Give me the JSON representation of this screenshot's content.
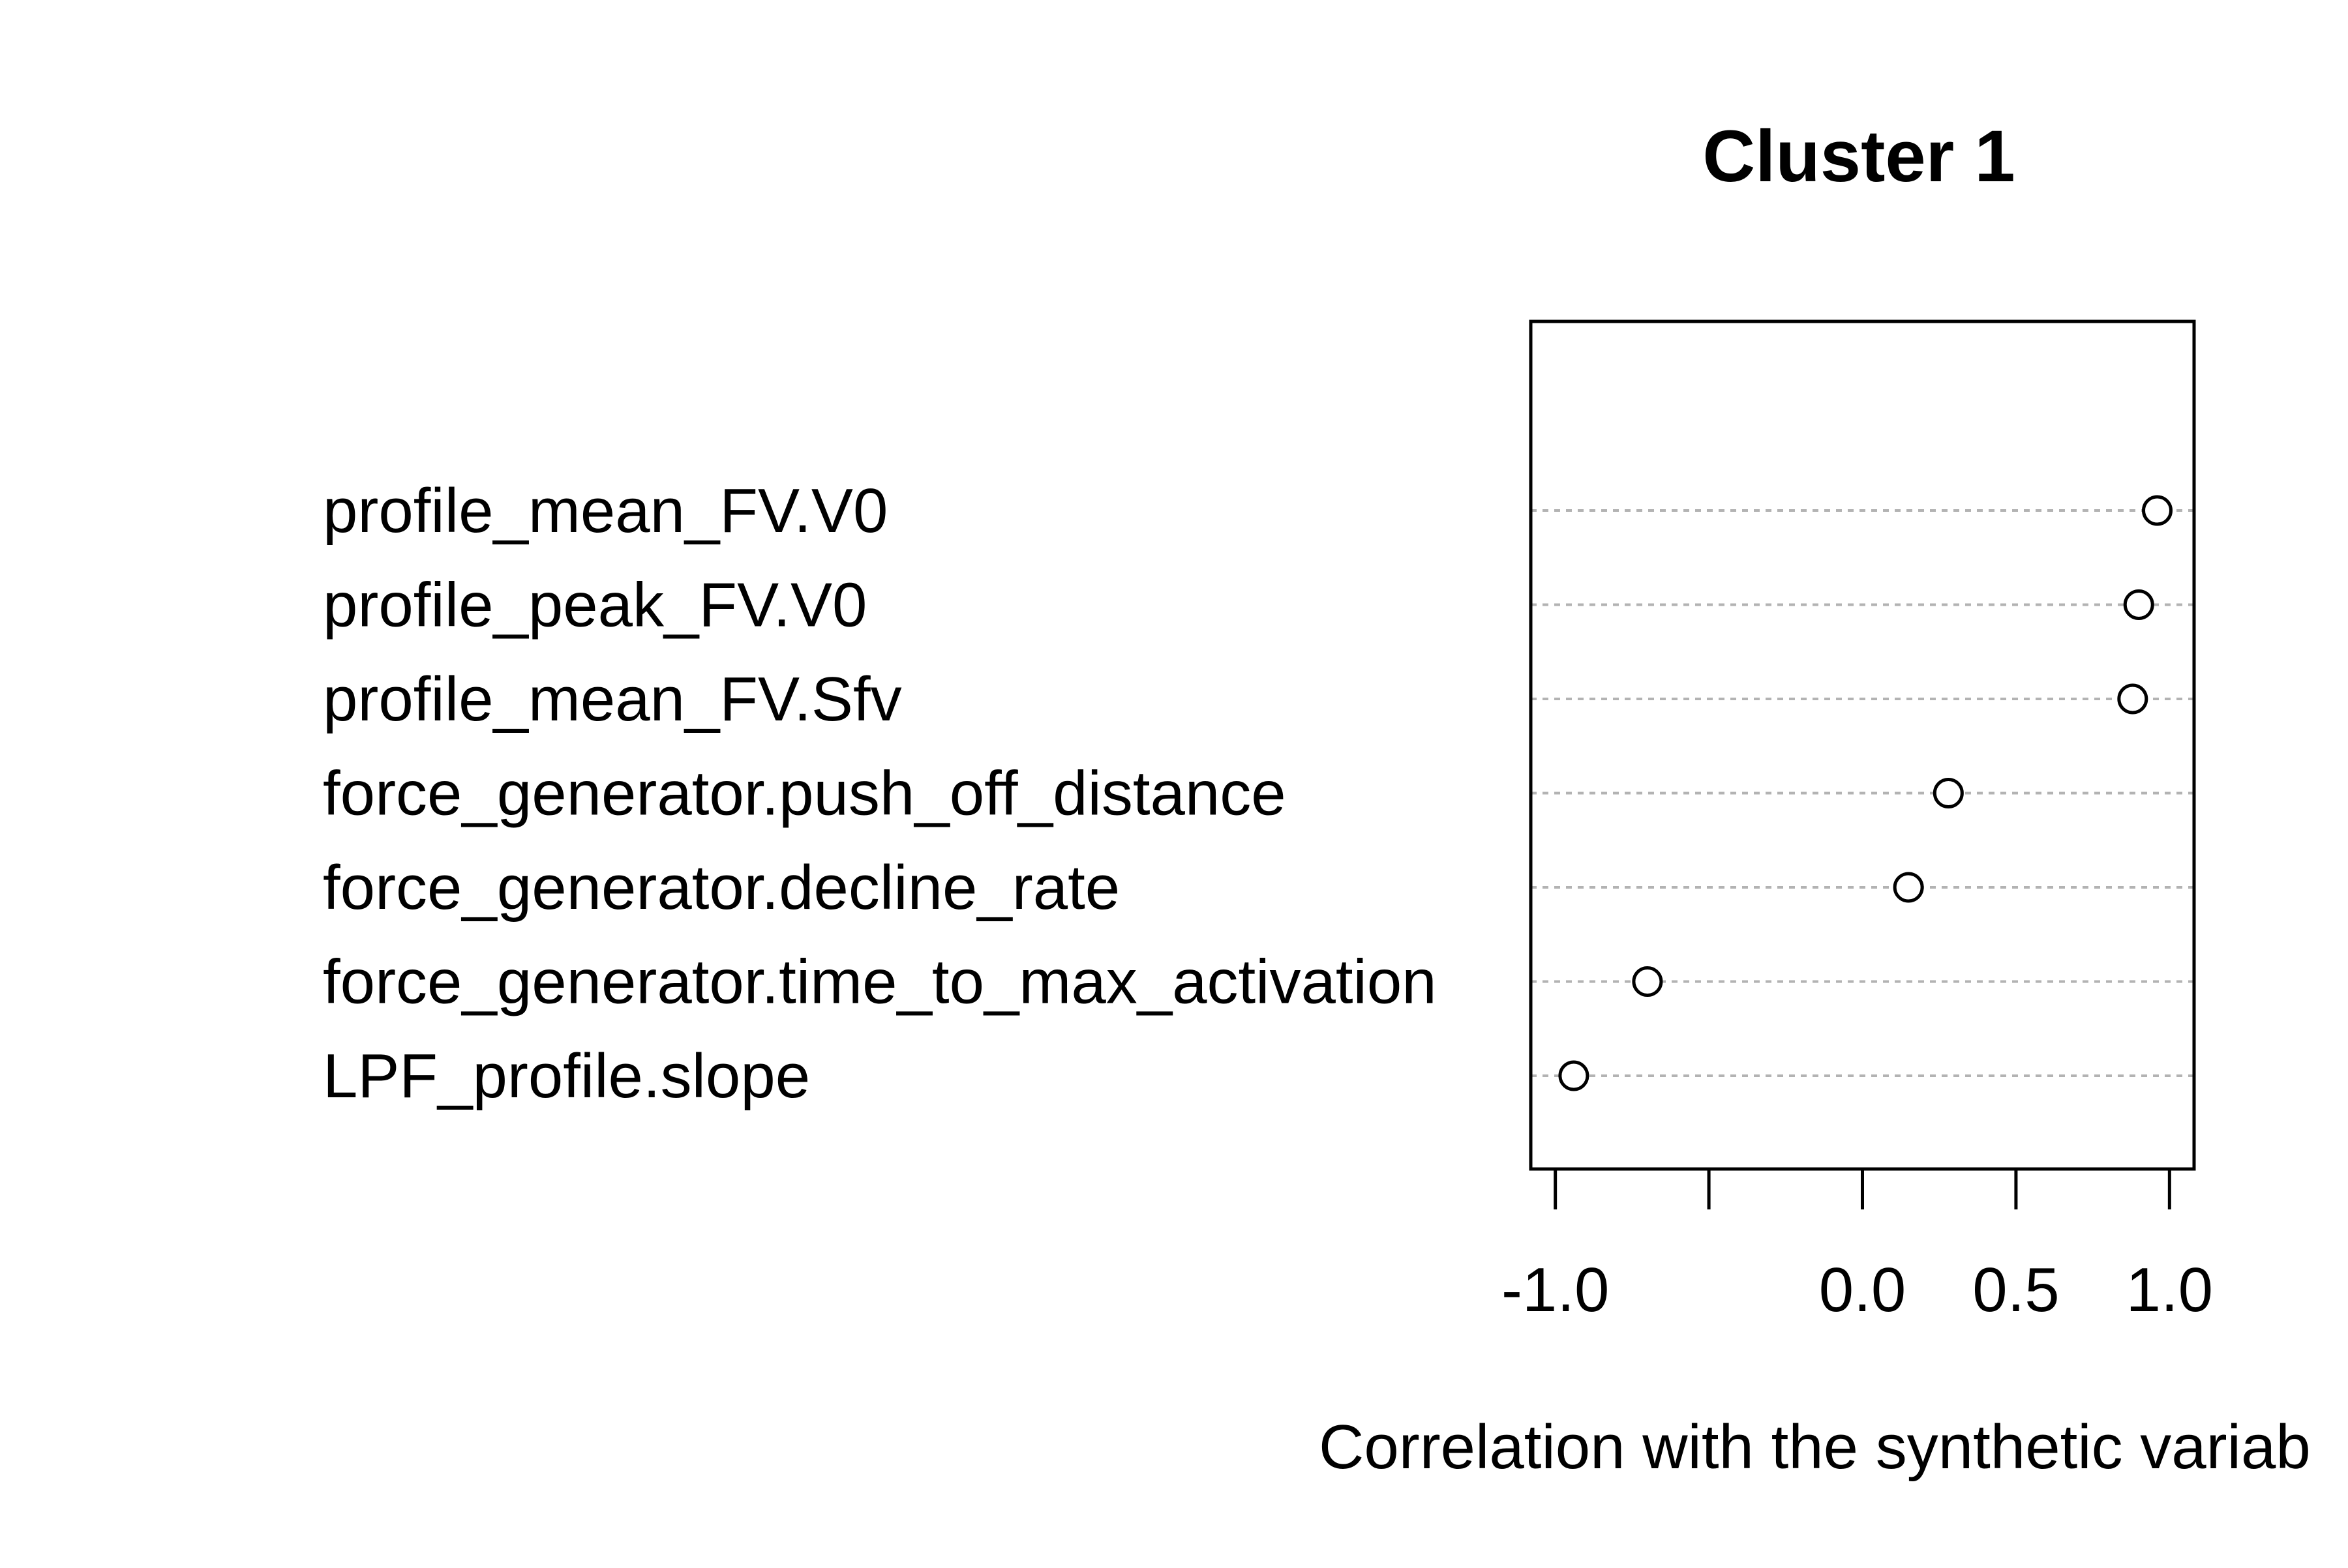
{
  "chart_data": {
    "type": "scatter",
    "title": "Cluster 1",
    "xlabel": "Correlation with the synthetic variab",
    "ylabel": "",
    "xlim": [
      -1.08,
      1.08
    ],
    "x_ticks": [
      -1.0,
      -0.5,
      0.0,
      0.5,
      1.0
    ],
    "x_tick_labels": [
      "-1.0",
      "",
      "0.0",
      "0.5",
      "1.0"
    ],
    "categories": [
      "profile_mean_FV.V0",
      "profile_peak_FV.V0",
      "profile_mean_FV.Sfv",
      "force_generator.push_off_distance",
      "force_generator.decline_rate",
      "force_generator.time_to_max_activation",
      "LPF_profile.slope"
    ],
    "values": [
      0.96,
      0.9,
      0.88,
      0.28,
      0.15,
      -0.7,
      -0.94
    ],
    "grid": "dotted horizontal lines per category",
    "legend": "none"
  }
}
